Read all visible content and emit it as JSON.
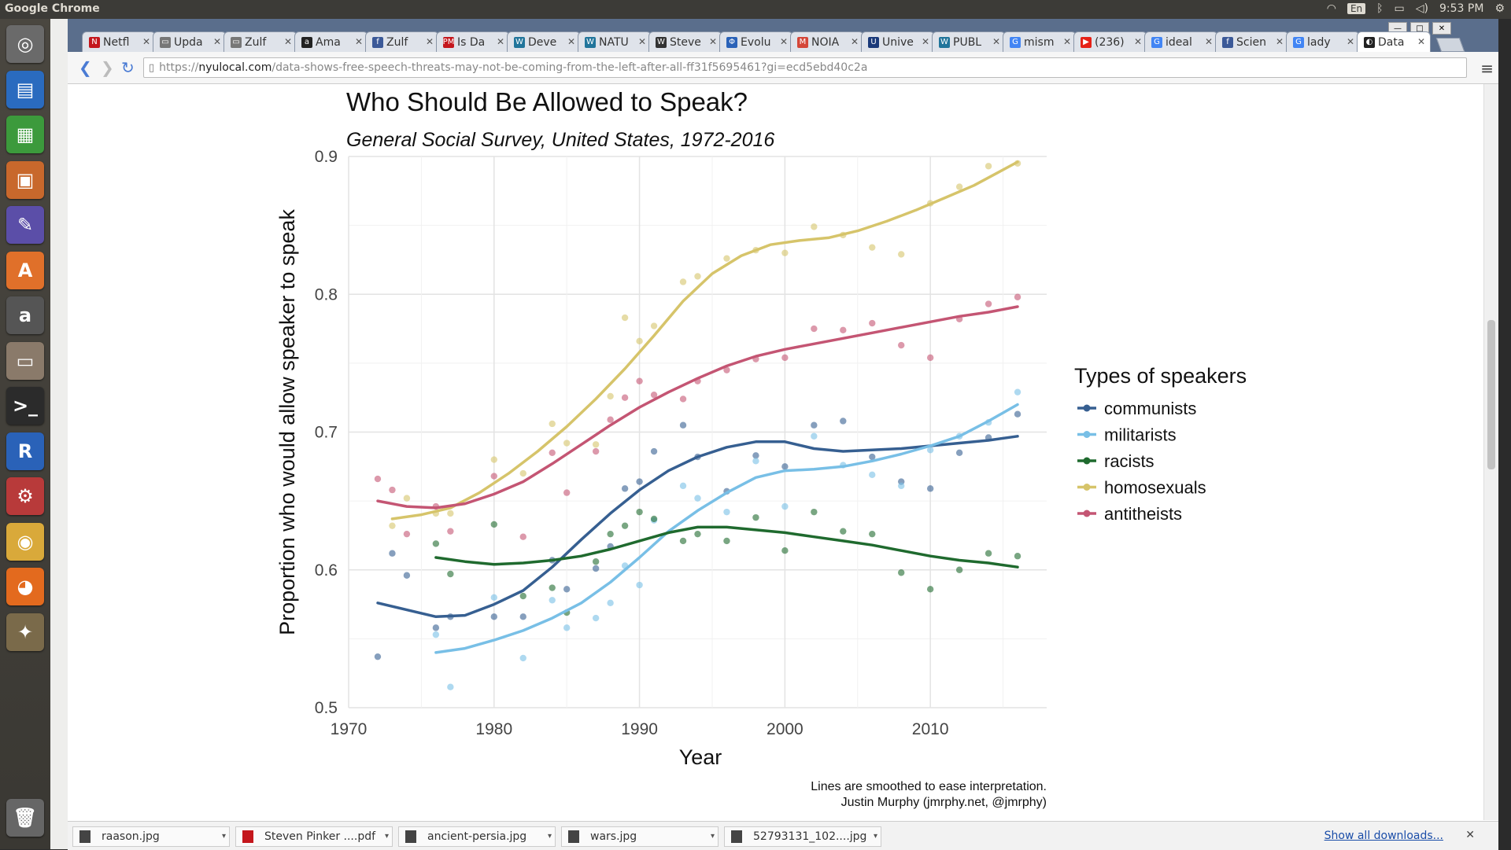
{
  "top_panel": {
    "app_title": "Google Chrome",
    "keyboard_layout": "En",
    "clock": "9:53 PM"
  },
  "launcher": {
    "items": [
      {
        "name": "dash",
        "glyph": "◎",
        "color": "#6a6a6a"
      },
      {
        "name": "writer",
        "glyph": "▤",
        "color": "#2a6bbf"
      },
      {
        "name": "calc",
        "glyph": "▦",
        "color": "#3c9a3c"
      },
      {
        "name": "impress",
        "glyph": "▣",
        "color": "#c8682c"
      },
      {
        "name": "editor",
        "glyph": "✎",
        "color": "#5b4ea8"
      },
      {
        "name": "software-center",
        "glyph": "A",
        "color": "#e0702a"
      },
      {
        "name": "amazon",
        "glyph": "a",
        "color": "#555555"
      },
      {
        "name": "files",
        "glyph": "▭",
        "color": "#8a7a6a"
      },
      {
        "name": "terminal",
        "glyph": ">_",
        "color": "#2b2b2b"
      },
      {
        "name": "r",
        "glyph": "R",
        "color": "#2a62b8"
      },
      {
        "name": "settings",
        "glyph": "⚙",
        "color": "#b83a3a"
      },
      {
        "name": "chrome",
        "glyph": "◉",
        "color": "#d9a93a"
      },
      {
        "name": "firefox",
        "glyph": "◕",
        "color": "#e36a1e"
      },
      {
        "name": "gimp",
        "glyph": "✦",
        "color": "#7a6a4a"
      },
      {
        "name": "trash",
        "glyph": "🗑",
        "color": "#666666"
      }
    ]
  },
  "tabs": [
    {
      "label": "Netfl",
      "fav": "N",
      "fav_color": "#c4161c"
    },
    {
      "label": "Upda",
      "fav": "▭",
      "fav_color": "#777777"
    },
    {
      "label": "Zulf",
      "fav": "▭",
      "fav_color": "#777777"
    },
    {
      "label": "Ama",
      "fav": "a",
      "fav_color": "#222222"
    },
    {
      "label": "Zulf",
      "fav": "f",
      "fav_color": "#3b5998"
    },
    {
      "label": "Is Da",
      "fav": "PM",
      "fav_color": "#c4161c"
    },
    {
      "label": "Deve",
      "fav": "W",
      "fav_color": "#21759b"
    },
    {
      "label": "NATU",
      "fav": "W",
      "fav_color": "#21759b"
    },
    {
      "label": "Steve",
      "fav": "W",
      "fav_color": "#333333"
    },
    {
      "label": "Evolu",
      "fav": "Φ",
      "fav_color": "#2a62b8"
    },
    {
      "label": "NOIA",
      "fav": "M",
      "fav_color": "#d44638"
    },
    {
      "label": "Unive",
      "fav": "U",
      "fav_color": "#1a3a7a"
    },
    {
      "label": "PUBL",
      "fav": "W",
      "fav_color": "#21759b"
    },
    {
      "label": "mism",
      "fav": "G",
      "fav_color": "#4285f4"
    },
    {
      "label": "(236)",
      "fav": "▶",
      "fav_color": "#e62117"
    },
    {
      "label": "ideal",
      "fav": "G",
      "fav_color": "#4285f4"
    },
    {
      "label": "Scien",
      "fav": "f",
      "fav_color": "#3b5998"
    },
    {
      "label": "lady",
      "fav": "G",
      "fav_color": "#4285f4"
    },
    {
      "label": "Data",
      "fav": "◐",
      "fav_color": "#222222",
      "active": true
    }
  ],
  "address_bar": {
    "scheme": "https://",
    "host": "nyulocal.com",
    "path": "/data-shows-free-speech-threats-may-not-be-coming-from-the-left-after-all-ff31f5695461?gi=ecd5ebd40c2a"
  },
  "chart_data": {
    "type": "scatter",
    "title": "Who Should Be Allowed to Speak?",
    "subtitle": "General Social Survey, United States, 1972-2016",
    "xlabel": "Year",
    "ylabel": "Proportion who would allow speaker to speak",
    "xlim": [
      1970,
      2018
    ],
    "ylim": [
      0.5,
      0.9
    ],
    "x_ticks": [
      1970,
      1980,
      1990,
      2000,
      2010
    ],
    "y_ticks": [
      0.5,
      0.6,
      0.7,
      0.8,
      0.9
    ],
    "grid": true,
    "legend_title": "Types of speakers",
    "legend_position": "right",
    "caption_lines": [
      "Lines are smoothed to ease interpretation.",
      "Justin Murphy (jmrphy.net, @jmrphy)"
    ],
    "series": [
      {
        "name": "communists",
        "color": "#365f91",
        "points": [
          [
            1972,
            0.537
          ],
          [
            1973,
            0.612
          ],
          [
            1974,
            0.596
          ],
          [
            1976,
            0.558
          ],
          [
            1977,
            0.566
          ],
          [
            1980,
            0.566
          ],
          [
            1982,
            0.566
          ],
          [
            1984,
            0.607
          ],
          [
            1985,
            0.586
          ],
          [
            1987,
            0.601
          ],
          [
            1988,
            0.617
          ],
          [
            1989,
            0.659
          ],
          [
            1990,
            0.664
          ],
          [
            1991,
            0.686
          ],
          [
            1993,
            0.705
          ],
          [
            1994,
            0.682
          ],
          [
            1996,
            0.657
          ],
          [
            1998,
            0.683
          ],
          [
            2000,
            0.675
          ],
          [
            2002,
            0.705
          ],
          [
            2004,
            0.708
          ],
          [
            2006,
            0.682
          ],
          [
            2008,
            0.664
          ],
          [
            2010,
            0.659
          ],
          [
            2012,
            0.685
          ],
          [
            2014,
            0.696
          ],
          [
            2016,
            0.713
          ]
        ],
        "smooth": [
          [
            1972,
            0.576
          ],
          [
            1974,
            0.571
          ],
          [
            1976,
            0.566
          ],
          [
            1978,
            0.567
          ],
          [
            1980,
            0.575
          ],
          [
            1982,
            0.585
          ],
          [
            1984,
            0.602
          ],
          [
            1986,
            0.622
          ],
          [
            1988,
            0.641
          ],
          [
            1990,
            0.658
          ],
          [
            1992,
            0.672
          ],
          [
            1994,
            0.682
          ],
          [
            1996,
            0.689
          ],
          [
            1998,
            0.693
          ],
          [
            2000,
            0.693
          ],
          [
            2002,
            0.688
          ],
          [
            2004,
            0.686
          ],
          [
            2006,
            0.687
          ],
          [
            2008,
            0.688
          ],
          [
            2010,
            0.69
          ],
          [
            2012,
            0.692
          ],
          [
            2014,
            0.694
          ],
          [
            2016,
            0.697
          ]
        ]
      },
      {
        "name": "militarists",
        "color": "#78bfe6",
        "points": [
          [
            1976,
            0.553
          ],
          [
            1977,
            0.515
          ],
          [
            1980,
            0.58
          ],
          [
            1982,
            0.536
          ],
          [
            1984,
            0.578
          ],
          [
            1985,
            0.558
          ],
          [
            1987,
            0.565
          ],
          [
            1988,
            0.576
          ],
          [
            1989,
            0.603
          ],
          [
            1990,
            0.589
          ],
          [
            1991,
            0.636
          ],
          [
            1993,
            0.661
          ],
          [
            1994,
            0.652
          ],
          [
            1996,
            0.642
          ],
          [
            1998,
            0.679
          ],
          [
            2000,
            0.646
          ],
          [
            2002,
            0.697
          ],
          [
            2004,
            0.676
          ],
          [
            2006,
            0.669
          ],
          [
            2008,
            0.661
          ],
          [
            2010,
            0.687
          ],
          [
            2012,
            0.697
          ],
          [
            2014,
            0.707
          ],
          [
            2016,
            0.729
          ]
        ],
        "smooth": [
          [
            1976,
            0.54
          ],
          [
            1978,
            0.543
          ],
          [
            1980,
            0.549
          ],
          [
            1982,
            0.556
          ],
          [
            1984,
            0.565
          ],
          [
            1986,
            0.576
          ],
          [
            1988,
            0.591
          ],
          [
            1990,
            0.609
          ],
          [
            1992,
            0.628
          ],
          [
            1994,
            0.643
          ],
          [
            1996,
            0.656
          ],
          [
            1998,
            0.667
          ],
          [
            2000,
            0.672
          ],
          [
            2002,
            0.673
          ],
          [
            2004,
            0.675
          ],
          [
            2006,
            0.679
          ],
          [
            2008,
            0.684
          ],
          [
            2010,
            0.69
          ],
          [
            2012,
            0.697
          ],
          [
            2014,
            0.708
          ],
          [
            2016,
            0.72
          ]
        ]
      },
      {
        "name": "racists",
        "color": "#1f6a2e",
        "points": [
          [
            1976,
            0.619
          ],
          [
            1977,
            0.597
          ],
          [
            1980,
            0.633
          ],
          [
            1982,
            0.581
          ],
          [
            1984,
            0.587
          ],
          [
            1985,
            0.569
          ],
          [
            1987,
            0.606
          ],
          [
            1988,
            0.626
          ],
          [
            1989,
            0.632
          ],
          [
            1990,
            0.642
          ],
          [
            1991,
            0.637
          ],
          [
            1993,
            0.621
          ],
          [
            1994,
            0.626
          ],
          [
            1996,
            0.621
          ],
          [
            1998,
            0.638
          ],
          [
            2000,
            0.614
          ],
          [
            2002,
            0.642
          ],
          [
            2004,
            0.628
          ],
          [
            2006,
            0.626
          ],
          [
            2008,
            0.598
          ],
          [
            2010,
            0.586
          ],
          [
            2012,
            0.6
          ],
          [
            2014,
            0.612
          ],
          [
            2016,
            0.61
          ]
        ],
        "smooth": [
          [
            1976,
            0.609
          ],
          [
            1978,
            0.606
          ],
          [
            1980,
            0.604
          ],
          [
            1982,
            0.605
          ],
          [
            1984,
            0.607
          ],
          [
            1986,
            0.61
          ],
          [
            1988,
            0.615
          ],
          [
            1990,
            0.621
          ],
          [
            1992,
            0.627
          ],
          [
            1994,
            0.631
          ],
          [
            1996,
            0.631
          ],
          [
            1998,
            0.629
          ],
          [
            2000,
            0.627
          ],
          [
            2002,
            0.624
          ],
          [
            2004,
            0.621
          ],
          [
            2006,
            0.618
          ],
          [
            2008,
            0.614
          ],
          [
            2010,
            0.61
          ],
          [
            2012,
            0.607
          ],
          [
            2014,
            0.605
          ],
          [
            2016,
            0.602
          ]
        ]
      },
      {
        "name": "homosexuals",
        "color": "#d6c46a",
        "points": [
          [
            1973,
            0.632
          ],
          [
            1974,
            0.652
          ],
          [
            1976,
            0.641
          ],
          [
            1977,
            0.641
          ],
          [
            1980,
            0.68
          ],
          [
            1982,
            0.67
          ],
          [
            1984,
            0.706
          ],
          [
            1985,
            0.692
          ],
          [
            1987,
            0.691
          ],
          [
            1988,
            0.726
          ],
          [
            1989,
            0.783
          ],
          [
            1990,
            0.766
          ],
          [
            1991,
            0.777
          ],
          [
            1993,
            0.809
          ],
          [
            1994,
            0.813
          ],
          [
            1996,
            0.826
          ],
          [
            1998,
            0.832
          ],
          [
            2000,
            0.83
          ],
          [
            2002,
            0.849
          ],
          [
            2004,
            0.843
          ],
          [
            2006,
            0.834
          ],
          [
            2008,
            0.829
          ],
          [
            2010,
            0.866
          ],
          [
            2012,
            0.878
          ],
          [
            2014,
            0.893
          ],
          [
            2016,
            0.895
          ]
        ],
        "smooth": [
          [
            1973,
            0.637
          ],
          [
            1975,
            0.64
          ],
          [
            1977,
            0.645
          ],
          [
            1979,
            0.656
          ],
          [
            1981,
            0.67
          ],
          [
            1983,
            0.686
          ],
          [
            1985,
            0.704
          ],
          [
            1987,
            0.724
          ],
          [
            1989,
            0.746
          ],
          [
            1991,
            0.77
          ],
          [
            1993,
            0.795
          ],
          [
            1995,
            0.815
          ],
          [
            1997,
            0.828
          ],
          [
            1999,
            0.836
          ],
          [
            2001,
            0.839
          ],
          [
            2003,
            0.841
          ],
          [
            2005,
            0.846
          ],
          [
            2007,
            0.853
          ],
          [
            2009,
            0.861
          ],
          [
            2011,
            0.87
          ],
          [
            2013,
            0.879
          ],
          [
            2016,
            0.896
          ]
        ]
      },
      {
        "name": "antitheists",
        "color": "#c45573",
        "points": [
          [
            1972,
            0.666
          ],
          [
            1973,
            0.658
          ],
          [
            1974,
            0.626
          ],
          [
            1976,
            0.646
          ],
          [
            1977,
            0.628
          ],
          [
            1980,
            0.668
          ],
          [
            1982,
            0.624
          ],
          [
            1984,
            0.685
          ],
          [
            1985,
            0.656
          ],
          [
            1987,
            0.686
          ],
          [
            1988,
            0.709
          ],
          [
            1989,
            0.725
          ],
          [
            1990,
            0.737
          ],
          [
            1991,
            0.727
          ],
          [
            1993,
            0.724
          ],
          [
            1994,
            0.737
          ],
          [
            1996,
            0.745
          ],
          [
            1998,
            0.753
          ],
          [
            2000,
            0.754
          ],
          [
            2002,
            0.775
          ],
          [
            2004,
            0.774
          ],
          [
            2006,
            0.779
          ],
          [
            2008,
            0.763
          ],
          [
            2010,
            0.754
          ],
          [
            2012,
            0.782
          ],
          [
            2014,
            0.793
          ],
          [
            2016,
            0.798
          ]
        ],
        "smooth": [
          [
            1972,
            0.65
          ],
          [
            1974,
            0.646
          ],
          [
            1976,
            0.645
          ],
          [
            1978,
            0.648
          ],
          [
            1980,
            0.655
          ],
          [
            1982,
            0.664
          ],
          [
            1984,
            0.677
          ],
          [
            1986,
            0.691
          ],
          [
            1988,
            0.705
          ],
          [
            1990,
            0.718
          ],
          [
            1992,
            0.729
          ],
          [
            1994,
            0.739
          ],
          [
            1996,
            0.748
          ],
          [
            1998,
            0.755
          ],
          [
            2000,
            0.76
          ],
          [
            2002,
            0.764
          ],
          [
            2004,
            0.768
          ],
          [
            2006,
            0.772
          ],
          [
            2008,
            0.776
          ],
          [
            2010,
            0.78
          ],
          [
            2012,
            0.784
          ],
          [
            2014,
            0.787
          ],
          [
            2016,
            0.791
          ]
        ]
      }
    ]
  },
  "downloads": {
    "items": [
      "raason.jpg",
      "Steven Pinker ....pdf",
      "ancient-persia.jpg",
      "wars.jpg",
      "52793131_102....jpg"
    ],
    "show_all": "Show all downloads..."
  }
}
